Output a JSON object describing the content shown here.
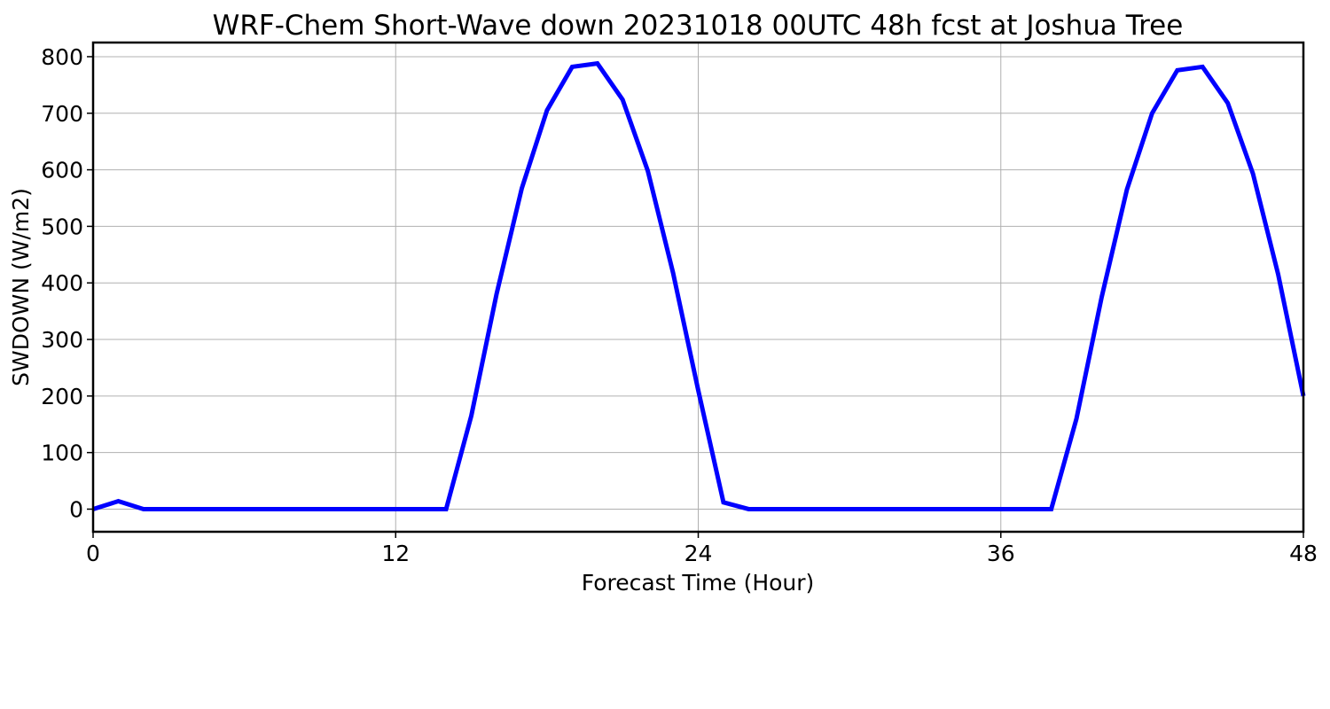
{
  "chart_data": {
    "type": "line",
    "title": "WRF-Chem Short-Wave down  20231018 00UTC 48h fcst at Joshua Tree",
    "xlabel": "Forecast Time (Hour)",
    "ylabel": "SWDOWN  (W/m2)",
    "xlim": [
      0,
      48
    ],
    "ylim": [
      -40,
      825
    ],
    "xticks": [
      0,
      12,
      24,
      36,
      48
    ],
    "yticks": [
      0,
      100,
      200,
      300,
      400,
      500,
      600,
      700,
      800
    ],
    "grid": true,
    "legend": "none",
    "series": [
      {
        "color": "#0000ff",
        "x": [
          0,
          1,
          2,
          3,
          4,
          5,
          6,
          7,
          8,
          9,
          10,
          11,
          12,
          13,
          14,
          15,
          16,
          17,
          18,
          19,
          20,
          21,
          22,
          23,
          24,
          25,
          26,
          27,
          28,
          29,
          30,
          31,
          32,
          33,
          34,
          35,
          36,
          37,
          38,
          39,
          40,
          41,
          42,
          43,
          44,
          45,
          46,
          47,
          48
        ],
        "y": [
          0,
          14,
          0,
          0,
          0,
          0,
          0,
          0,
          0,
          0,
          0,
          0,
          0,
          0,
          0,
          165,
          380,
          567,
          705,
          782,
          788,
          724,
          598,
          418,
          210,
          12,
          0,
          0,
          0,
          0,
          0,
          0,
          0,
          0,
          0,
          0,
          0,
          0,
          0,
          160,
          375,
          565,
          700,
          776,
          782,
          718,
          593,
          415,
          200
        ]
      }
    ]
  }
}
